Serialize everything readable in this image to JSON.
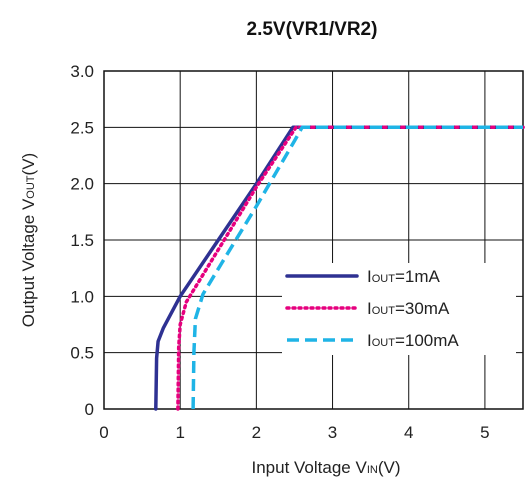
{
  "chart_data": {
    "type": "line",
    "title": "2.5V(VR1/VR2)",
    "xlabel": {
      "prefix": "Input Voltage V",
      "sub": "IN",
      "suffix": "(V)"
    },
    "ylabel": {
      "prefix": "Output Voltage V",
      "sub": "OUT",
      "suffix": "(V)"
    },
    "xlim": [
      0,
      5.5
    ],
    "ylim": [
      0,
      3.0
    ],
    "x_ticks": [
      "0",
      "1",
      "2",
      "3",
      "4",
      "5"
    ],
    "y_ticks": [
      "0",
      "0.5",
      "1.0",
      "1.5",
      "2.0",
      "2.5",
      "3.0"
    ],
    "grid": true,
    "legend_position": "center-right",
    "series": [
      {
        "legend": {
          "prefix": "I",
          "sub": "OUT",
          "suffix": "=1mA"
        },
        "color": "#2e3192",
        "style": "solid",
        "points": [
          [
            0.68,
            0
          ],
          [
            0.69,
            0.45
          ],
          [
            0.71,
            0.6
          ],
          [
            0.78,
            0.72
          ],
          [
            1.0,
            1.0
          ],
          [
            1.5,
            1.5
          ],
          [
            2.0,
            2.0
          ],
          [
            2.48,
            2.5
          ],
          [
            5.5,
            2.5
          ]
        ]
      },
      {
        "legend": {
          "prefix": "I",
          "sub": "OUT",
          "suffix": "=30mA"
        },
        "color": "#e6007e",
        "style": "dotted",
        "points": [
          [
            0.97,
            0
          ],
          [
            0.98,
            0.55
          ],
          [
            1.0,
            0.75
          ],
          [
            1.08,
            0.95
          ],
          [
            1.55,
            1.47
          ],
          [
            2.0,
            1.97
          ],
          [
            2.52,
            2.5
          ],
          [
            5.5,
            2.5
          ]
        ]
      },
      {
        "legend": {
          "prefix": "I",
          "sub": "OUT",
          "suffix": "=100mA"
        },
        "color": "#1fb4e6",
        "style": "dashed",
        "points": [
          [
            1.17,
            0
          ],
          [
            1.18,
            0.5
          ],
          [
            1.2,
            0.8
          ],
          [
            1.3,
            1.02
          ],
          [
            1.55,
            1.3
          ],
          [
            2.0,
            1.8
          ],
          [
            2.5,
            2.38
          ],
          [
            2.6,
            2.5
          ],
          [
            5.5,
            2.5
          ]
        ]
      }
    ]
  }
}
